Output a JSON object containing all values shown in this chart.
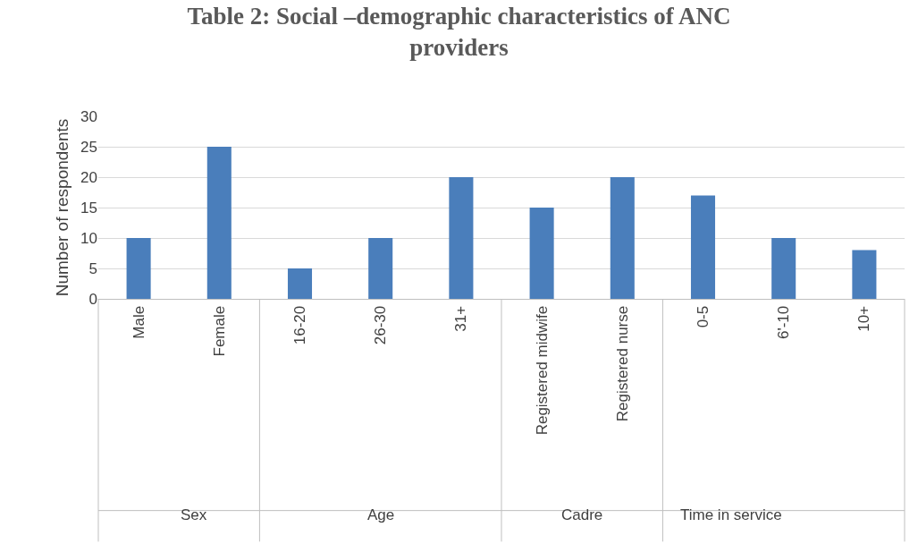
{
  "chart_data": [
    {
      "type": "bar",
      "title": "Table 2: Social –demographic characteristics of ANC providers",
      "ylabel": "Number of respondents",
      "xlabel": "Sex",
      "categories": [
        "Male",
        "Female"
      ],
      "values": [
        10,
        25
      ],
      "color": "#4a7ebb",
      "ylim": [
        0,
        30
      ],
      "yticks": [
        0,
        5,
        10,
        15,
        20,
        25,
        30
      ],
      "grid": "y"
    },
    {
      "type": "bar",
      "xlabel": "Age",
      "categories": [
        "16-20",
        "26-30",
        "31+"
      ],
      "values": [
        5,
        10,
        20
      ],
      "color": "#4a7ebb",
      "ylim": [
        0,
        30
      ],
      "yticks": [
        0,
        5,
        10,
        15,
        20,
        25,
        30
      ],
      "grid": "y",
      "tick_labels": "x"
    },
    {
      "type": "bar",
      "xlabel": "Cadre",
      "categories": [
        "Registered midwife",
        "Registered nurse"
      ],
      "values": [
        15,
        20
      ],
      "color": "#4a7ebb",
      "ylim": [
        0,
        30
      ],
      "yticks": [
        0,
        5,
        10,
        15,
        20,
        25,
        30
      ],
      "grid": "y",
      "tick_labels": "x"
    },
    {
      "type": "bar",
      "xlabel": "Time in service",
      "categories": [
        "0-5",
        "6'-10",
        "10+"
      ],
      "values": [
        17,
        10,
        8
      ],
      "color": "#4a7ebb",
      "ylim": [
        0,
        30
      ],
      "yticks": [
        0,
        5,
        10,
        15,
        20,
        25,
        30
      ],
      "grid": "y",
      "tick_labels": "x"
    }
  ]
}
